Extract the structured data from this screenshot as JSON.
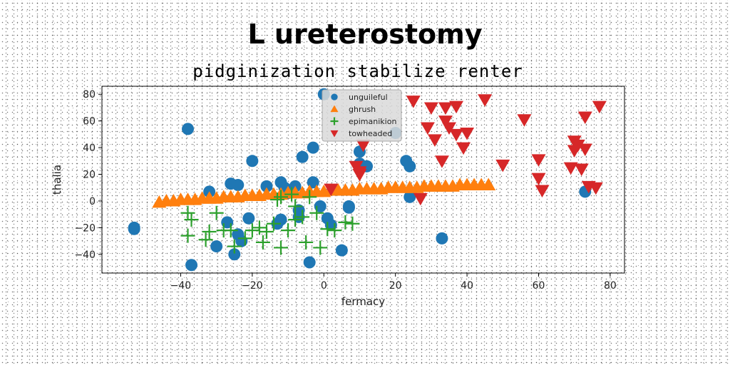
{
  "chart_data": {
    "type": "scatter",
    "title": "L ureterostomy",
    "subtitle": "pidginization stabilize renter",
    "xlabel": "fermacy",
    "ylabel": "thalia",
    "xlim": [
      -62,
      84
    ],
    "ylim": [
      -54,
      86
    ],
    "xticks": [
      -40,
      -20,
      0,
      20,
      40,
      60,
      80
    ],
    "yticks": [
      -40,
      -20,
      0,
      20,
      40,
      60,
      80
    ],
    "grid": false,
    "legend_position": "top-center",
    "series": [
      {
        "name": "unguileful",
        "marker": "circle",
        "color": "#1f77b4",
        "points": [
          [
            -53,
            -20
          ],
          [
            -53,
            -21
          ],
          [
            -38,
            54
          ],
          [
            -37,
            -48
          ],
          [
            -32,
            7
          ],
          [
            -30,
            -34
          ],
          [
            -27,
            -16
          ],
          [
            -26,
            13
          ],
          [
            -25,
            -40
          ],
          [
            -24,
            -25
          ],
          [
            -24,
            12
          ],
          [
            -23,
            -30
          ],
          [
            -20,
            30
          ],
          [
            -21,
            -13
          ],
          [
            -16,
            11
          ],
          [
            -13,
            -17
          ],
          [
            -12,
            14
          ],
          [
            -12,
            -14
          ],
          [
            -11,
            10
          ],
          [
            -10,
            6
          ],
          [
            -8,
            11
          ],
          [
            -7,
            -12
          ],
          [
            -7,
            -7
          ],
          [
            -6,
            33
          ],
          [
            -4,
            -46
          ],
          [
            -3,
            40
          ],
          [
            -3,
            14
          ],
          [
            -1,
            -4
          ],
          [
            0,
            80
          ],
          [
            1,
            -13
          ],
          [
            2,
            -18
          ],
          [
            5,
            -37
          ],
          [
            7,
            -5
          ],
          [
            7,
            -4
          ],
          [
            10,
            28
          ],
          [
            10,
            37
          ],
          [
            12,
            26
          ],
          [
            20,
            51
          ],
          [
            23,
            30
          ],
          [
            24,
            26
          ],
          [
            24,
            3
          ],
          [
            33,
            -28
          ],
          [
            73,
            7
          ]
        ]
      },
      {
        "name": "ghrush",
        "marker": "triangle-up",
        "color": "#ff7f0e",
        "points": [
          [
            -46,
            -1
          ],
          [
            -44,
            0
          ],
          [
            -42,
            0
          ],
          [
            -40,
            1
          ],
          [
            -38,
            1
          ],
          [
            -36,
            1
          ],
          [
            -34,
            2
          ],
          [
            -32,
            2
          ],
          [
            -30,
            2
          ],
          [
            -28,
            3
          ],
          [
            -26,
            3
          ],
          [
            -24,
            3
          ],
          [
            -22,
            4
          ],
          [
            -20,
            4
          ],
          [
            -18,
            4
          ],
          [
            -16,
            5
          ],
          [
            -14,
            5
          ],
          [
            -12,
            5
          ],
          [
            -10,
            6
          ],
          [
            -8,
            6
          ],
          [
            -6,
            6
          ],
          [
            -4,
            7
          ],
          [
            -2,
            7
          ],
          [
            0,
            7
          ],
          [
            2,
            8
          ],
          [
            4,
            8
          ],
          [
            6,
            8
          ],
          [
            8,
            8
          ],
          [
            10,
            9
          ],
          [
            12,
            9
          ],
          [
            14,
            9
          ],
          [
            16,
            9
          ],
          [
            18,
            10
          ],
          [
            20,
            10
          ],
          [
            22,
            10
          ],
          [
            24,
            10
          ],
          [
            26,
            10
          ],
          [
            28,
            11
          ],
          [
            30,
            11
          ],
          [
            32,
            11
          ],
          [
            34,
            11
          ],
          [
            36,
            11
          ],
          [
            38,
            12
          ],
          [
            40,
            12
          ],
          [
            42,
            12
          ],
          [
            44,
            12
          ],
          [
            46,
            12
          ]
        ]
      },
      {
        "name": "epimanikion",
        "marker": "plus",
        "color": "#2ca02c",
        "points": [
          [
            -38,
            -9
          ],
          [
            -38,
            -26
          ],
          [
            -37,
            -14
          ],
          [
            -33,
            -29
          ],
          [
            -32,
            -23
          ],
          [
            -30,
            -9
          ],
          [
            -28,
            -22
          ],
          [
            -26,
            -22
          ],
          [
            -25,
            -34
          ],
          [
            -22,
            -28
          ],
          [
            -20,
            -22
          ],
          [
            -18,
            -20
          ],
          [
            -17,
            -31
          ],
          [
            -16,
            -23
          ],
          [
            -14,
            -17
          ],
          [
            -13,
            1
          ],
          [
            -12,
            3
          ],
          [
            -12,
            -35
          ],
          [
            -10,
            -22
          ],
          [
            -9,
            5
          ],
          [
            -8,
            -4
          ],
          [
            -8,
            -14
          ],
          [
            -6,
            -12
          ],
          [
            -5,
            -31
          ],
          [
            -4,
            3
          ],
          [
            -2,
            -9
          ],
          [
            -1,
            -35
          ],
          [
            1,
            -21
          ],
          [
            3,
            -22
          ],
          [
            6,
            -16
          ],
          [
            8,
            -17
          ]
        ]
      },
      {
        "name": "towheaded",
        "marker": "triangle-down",
        "color": "#d62728",
        "points": [
          [
            2,
            9
          ],
          [
            9,
            26
          ],
          [
            10,
            22
          ],
          [
            10,
            20
          ],
          [
            11,
            42
          ],
          [
            25,
            75
          ],
          [
            27,
            2
          ],
          [
            29,
            55
          ],
          [
            30,
            70
          ],
          [
            31,
            46
          ],
          [
            33,
            30
          ],
          [
            34,
            70
          ],
          [
            34,
            60
          ],
          [
            35,
            55
          ],
          [
            37,
            71
          ],
          [
            37,
            50
          ],
          [
            39,
            40
          ],
          [
            40,
            51
          ],
          [
            45,
            76
          ],
          [
            50,
            27
          ],
          [
            56,
            61
          ],
          [
            60,
            31
          ],
          [
            60,
            17
          ],
          [
            61,
            8
          ],
          [
            69,
            25
          ],
          [
            70,
            38
          ],
          [
            70,
            45
          ],
          [
            71,
            42
          ],
          [
            72,
            24
          ],
          [
            73,
            39
          ],
          [
            73,
            63
          ],
          [
            74,
            11
          ],
          [
            76,
            10
          ],
          [
            77,
            71
          ]
        ]
      }
    ]
  }
}
